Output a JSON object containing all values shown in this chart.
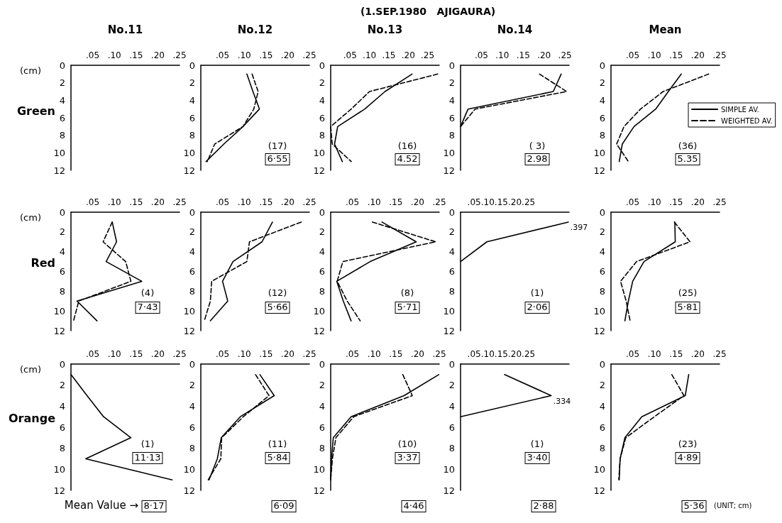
{
  "chart_data": [
    {
      "type": "line",
      "title": "No.11",
      "ylabel": "(cm)",
      "annotations": [
        "Green"
      ],
      "xlim": [
        0,
        0.25
      ],
      "xticks": [
        {
          "value": 0.05,
          "label": ".05"
        },
        {
          "value": 0.1,
          "label": ".10"
        },
        {
          "value": 0.15,
          "label": ".15"
        },
        {
          "value": 0.2,
          "label": ".20"
        },
        {
          "value": 0.25,
          "label": ".25"
        }
      ],
      "ylim": [
        12,
        0
      ],
      "yticks": [
        0,
        2,
        4,
        6,
        8,
        10,
        12
      ]
    },
    {
      "type": "line",
      "title": "No.12",
      "marker": "none",
      "annotations": [
        "(17)",
        "6·55"
      ],
      "xlim": [
        0,
        0.25
      ],
      "xticks": [
        {
          "value": 0.05,
          "label": ".05"
        },
        {
          "value": 0.1,
          "label": ".10"
        },
        {
          "value": 0.15,
          "label": ".15"
        },
        {
          "value": 0.2,
          "label": ".20"
        },
        {
          "value": 0.25,
          "label": ".25"
        }
      ],
      "ylim": [
        12,
        0
      ],
      "yticks": [
        0,
        2,
        4,
        6,
        8,
        10,
        12
      ],
      "series": [
        {
          "color": "#000000",
          "line_style": "solid",
          "x": [
            0.106,
            0.12,
            0.135,
            0.097,
            0.053,
            0.012
          ],
          "values": [
            1,
            3,
            5,
            7,
            9,
            11
          ]
        },
        {
          "color": "#000000",
          "line_style": "dashed",
          "x": [
            0.118,
            0.132,
            0.122,
            0.097,
            0.032,
            0.015
          ],
          "values": [
            1,
            3,
            5,
            7,
            9,
            11
          ]
        }
      ]
    },
    {
      "type": "line",
      "title": "No.13",
      "marker": "none",
      "annotations": [
        "(16)",
        "4.52"
      ],
      "xlim": [
        0,
        0.28
      ],
      "xticks": [
        {
          "value": 0.05,
          "label": ".05"
        },
        {
          "value": 0.1,
          "label": ".10"
        },
        {
          "value": 0.15,
          "label": ".15"
        },
        {
          "value": 0.2,
          "label": ".20"
        },
        {
          "value": 0.25,
          "label": ".25"
        }
      ],
      "ylim": [
        12,
        0
      ],
      "yticks": [
        0,
        2,
        4,
        6,
        8,
        10,
        12
      ],
      "series": [
        {
          "color": "#000000",
          "line_style": "solid",
          "x": [
            0.21,
            0.14,
            0.088,
            0.018,
            0.01,
            0.03
          ],
          "values": [
            1,
            3,
            5,
            7,
            9,
            11
          ]
        },
        {
          "color": "#000000",
          "line_style": "dashed",
          "x": [
            0.276,
            0.1,
            0.053,
            0,
            0.004,
            0.053
          ],
          "values": [
            1,
            3,
            5,
            7,
            9,
            11
          ]
        }
      ]
    },
    {
      "type": "line",
      "title": "No.14",
      "marker": "none",
      "annotations": [
        "( 3)",
        "2.98",
        "(1.SEP.1980   AJIGAURA)"
      ],
      "xlim": [
        0,
        0.26
      ],
      "xticks": [
        {
          "value": 0.05,
          "label": ".05"
        },
        {
          "value": 0.1,
          "label": ".10"
        },
        {
          "value": 0.15,
          "label": ".15"
        },
        {
          "value": 0.2,
          "label": ".20"
        },
        {
          "value": 0.25,
          "label": ".25"
        }
      ],
      "ylim": [
        12,
        0
      ],
      "yticks": [
        0,
        2,
        4,
        6,
        8,
        10,
        12
      ],
      "series": [
        {
          "color": "#000000",
          "line_style": "solid",
          "x": [
            0.241,
            0.222,
            0.018,
            0
          ],
          "values": [
            1,
            3,
            5,
            7
          ]
        },
        {
          "color": "#000000",
          "line_style": "dashed",
          "x": [
            0.189,
            0.254,
            0.035,
            0
          ],
          "values": [
            1,
            3,
            5,
            7
          ]
        }
      ]
    },
    {
      "type": "line",
      "title": "Mean",
      "marker": "none",
      "legend": "right",
      "annotations": [
        "(36)",
        "5.35"
      ],
      "xlim": [
        0,
        0.25
      ],
      "xticks": [
        {
          "value": 0.05,
          "label": ".05"
        },
        {
          "value": 0.1,
          "label": ".10"
        },
        {
          "value": 0.15,
          "label": ".15"
        },
        {
          "value": 0.2,
          "label": ".20"
        },
        {
          "value": 0.25,
          "label": ".25"
        }
      ],
      "ylim": [
        12,
        0
      ],
      "yticks": [
        0,
        2,
        4,
        6,
        8,
        10,
        12
      ],
      "series": [
        {
          "name": "SIMPLE AV.",
          "color": "#000000",
          "line_style": "solid",
          "x": [
            0.162,
            0.132,
            0.103,
            0.053,
            0.026,
            0.019
          ],
          "values": [
            1,
            3,
            5,
            7,
            9,
            11
          ]
        },
        {
          "name": "WEIGHTED AV.",
          "color": "#000000",
          "line_style": "dashed",
          "x": [
            0.225,
            0.12,
            0.068,
            0.03,
            0.013,
            0.04
          ],
          "values": [
            1,
            3,
            5,
            7,
            9,
            11
          ]
        }
      ]
    },
    {
      "type": "line",
      "ylabel": "(cm)",
      "marker": "none",
      "annotations": [
        "(4)",
        "7·43",
        "Red"
      ],
      "xlim": [
        0,
        0.25
      ],
      "xticks": [
        {
          "value": 0.05,
          "label": ".05"
        },
        {
          "value": 0.1,
          "label": ".10"
        },
        {
          "value": 0.15,
          "label": ".15"
        },
        {
          "value": 0.2,
          "label": ".20"
        },
        {
          "value": 0.25,
          "label": ".25"
        }
      ],
      "ylim": [
        12,
        0
      ],
      "yticks": [
        0,
        2,
        4,
        6,
        8,
        10,
        12
      ],
      "series": [
        {
          "color": "#000000",
          "line_style": "solid",
          "x": [
            0.095,
            0.105,
            0.081,
            0.163,
            0.014,
            0.06
          ],
          "values": [
            1,
            3,
            5,
            7,
            9,
            11
          ]
        },
        {
          "color": "#000000",
          "line_style": "dashed",
          "x": [
            0.095,
            0.074,
            0.126,
            0.138,
            0.018,
            0.006
          ],
          "values": [
            1,
            3,
            5,
            7,
            9,
            11
          ]
        }
      ]
    },
    {
      "type": "line",
      "marker": "none",
      "annotations": [
        "(12)",
        "5·66"
      ],
      "xlim": [
        0,
        0.25
      ],
      "xticks": [
        {
          "value": 0.05,
          "label": ".05"
        },
        {
          "value": 0.1,
          "label": ".10"
        },
        {
          "value": 0.15,
          "label": ".15"
        },
        {
          "value": 0.2,
          "label": ".20"
        },
        {
          "value": 0.25,
          "label": ".25"
        }
      ],
      "ylim": [
        12,
        0
      ],
      "yticks": [
        0,
        2,
        4,
        6,
        8,
        10,
        12
      ],
      "series": [
        {
          "color": "#000000",
          "line_style": "solid",
          "x": [
            0.165,
            0.141,
            0.074,
            0.05,
            0.062,
            0.022
          ],
          "values": [
            1,
            3,
            5,
            7,
            9,
            11
          ]
        },
        {
          "color": "#000000",
          "line_style": "dashed",
          "x": [
            0.231,
            0.112,
            0.106,
            0.025,
            0.022,
            0.008
          ],
          "values": [
            1,
            3,
            5,
            7,
            9,
            11
          ]
        }
      ]
    },
    {
      "type": "line",
      "marker": "none",
      "annotations": [
        "(8)",
        "5·71"
      ],
      "xlim": [
        0,
        0.25
      ],
      "xticks": [
        {
          "value": 0.05,
          "label": ".05"
        },
        {
          "value": 0.1,
          "label": ".10"
        },
        {
          "value": 0.15,
          "label": ".15"
        },
        {
          "value": 0.2,
          "label": ".20"
        },
        {
          "value": 0.25,
          "label": ".25"
        }
      ],
      "ylim": [
        12,
        0
      ],
      "yticks": [
        0,
        2,
        4,
        6,
        8,
        10,
        12
      ],
      "series": [
        {
          "color": "#000000",
          "line_style": "solid",
          "x": [
            0.118,
            0.197,
            0.091,
            0.014,
            0.029,
            0.047
          ],
          "values": [
            1,
            3,
            5,
            7,
            9,
            11
          ]
        },
        {
          "color": "#000000",
          "line_style": "dashed",
          "x": [
            0.096,
            0.242,
            0.028,
            0.015,
            0.038,
            0.068
          ],
          "values": [
            1,
            3,
            5,
            7,
            9,
            11
          ]
        }
      ]
    },
    {
      "type": "line",
      "marker": "none",
      "annotations": [
        "(1)",
        "2·06",
        {
          "text": ".397",
          "x": 0.397,
          "y": 1
        }
      ],
      "xlim": [
        0,
        0.4
      ],
      "xticks": [
        {
          "value": 0.05,
          "label": ".05"
        },
        {
          "value": 0.1,
          "label": ".10"
        },
        {
          "value": 0.15,
          "label": ".15"
        },
        {
          "value": 0.2,
          "label": ".20"
        },
        {
          "value": 0.25,
          "label": ".25"
        }
      ],
      "ylim": [
        12,
        0
      ],
      "yticks": [
        0,
        2,
        4,
        6,
        8,
        10,
        12
      ],
      "series": [
        {
          "color": "#000000",
          "line_style": "solid",
          "x": [
            0.397,
            0.097,
            0
          ],
          "values": [
            1,
            3,
            5
          ]
        }
      ]
    },
    {
      "type": "line",
      "marker": "none",
      "annotations": [
        "(25)",
        "5·81"
      ],
      "xlim": [
        0,
        0.25
      ],
      "xticks": [
        {
          "value": 0.05,
          "label": ".05"
        },
        {
          "value": 0.1,
          "label": ".10"
        },
        {
          "value": 0.15,
          "label": ".15"
        },
        {
          "value": 0.2,
          "label": ".20"
        },
        {
          "value": 0.25,
          "label": ".25"
        }
      ],
      "ylim": [
        12,
        0
      ],
      "yticks": [
        0,
        2,
        4,
        6,
        8,
        10,
        12
      ],
      "series": [
        {
          "color": "#000000",
          "line_style": "solid",
          "x": [
            0.147,
            0.148,
            0.076,
            0.05,
            0.04,
            0.032
          ],
          "values": [
            1,
            3,
            5,
            7,
            9,
            11
          ]
        },
        {
          "color": "#000000",
          "line_style": "dashed",
          "x": [
            0.146,
            0.182,
            0.059,
            0.022,
            0.035,
            0.044
          ],
          "values": [
            1,
            3,
            5,
            7,
            9,
            11
          ]
        }
      ]
    },
    {
      "type": "line",
      "ylabel": "(cm)",
      "marker": "none",
      "annotations": [
        "(1)",
        "11·13",
        "Orange",
        "8·17",
        "Mean Value →"
      ],
      "xlim": [
        0,
        0.25
      ],
      "xticks": [
        {
          "value": 0.05,
          "label": ".05"
        },
        {
          "value": 0.1,
          "label": ".10"
        },
        {
          "value": 0.15,
          "label": ".15"
        },
        {
          "value": 0.2,
          "label": ".20"
        },
        {
          "value": 0.25,
          "label": ".25"
        }
      ],
      "ylim": [
        12,
        0
      ],
      "yticks": [
        0,
        2,
        4,
        6,
        8,
        10,
        12
      ],
      "series": [
        {
          "color": "#000000",
          "line_style": "solid",
          "x": [
            0,
            0.037,
            0.075,
            0.138,
            0.034,
            0.233
          ],
          "values": [
            1,
            3,
            5,
            7,
            9,
            11
          ]
        }
      ]
    },
    {
      "type": "line",
      "marker": "none",
      "annotations": [
        "(11)",
        "5·84",
        "6·09"
      ],
      "xlim": [
        0,
        0.25
      ],
      "xticks": [
        {
          "value": 0.05,
          "label": ".05"
        },
        {
          "value": 0.1,
          "label": ".10"
        },
        {
          "value": 0.15,
          "label": ".15"
        },
        {
          "value": 0.2,
          "label": ".20"
        },
        {
          "value": 0.25,
          "label": ".25"
        }
      ],
      "ylim": [
        12,
        0
      ],
      "yticks": [
        0,
        2,
        4,
        6,
        8,
        10,
        12
      ],
      "series": [
        {
          "color": "#000000",
          "line_style": "solid",
          "x": [
            0.136,
            0.169,
            0.091,
            0.047,
            0.038,
            0.019
          ],
          "values": [
            1,
            3,
            5,
            7,
            9,
            11
          ]
        },
        {
          "color": "#000000",
          "line_style": "dashed",
          "x": [
            0.126,
            0.157,
            0.098,
            0.048,
            0.046,
            0.017
          ],
          "values": [
            1,
            3,
            5,
            7,
            9,
            11
          ]
        }
      ]
    },
    {
      "type": "line",
      "marker": "none",
      "annotations": [
        "(10)",
        "3·37",
        "4·46"
      ],
      "xlim": [
        0,
        0.25
      ],
      "xticks": [
        {
          "value": 0.05,
          "label": ".05"
        },
        {
          "value": 0.1,
          "label": ".10"
        },
        {
          "value": 0.15,
          "label": ".15"
        },
        {
          "value": 0.2,
          "label": ".20"
        },
        {
          "value": 0.25,
          "label": ".25"
        }
      ],
      "ylim": [
        12,
        0
      ],
      "yticks": [
        0,
        2,
        4,
        6,
        8,
        10,
        12
      ],
      "series": [
        {
          "color": "#000000",
          "line_style": "solid",
          "x": [
            0.249,
            0.169,
            0.047,
            0.006,
            0.002,
            0
          ],
          "values": [
            1,
            3,
            5,
            7,
            9,
            11
          ]
        },
        {
          "color": "#000000",
          "line_style": "dashed",
          "x": [
            0.166,
            0.188,
            0.053,
            0.012,
            0.004,
            0
          ],
          "values": [
            1,
            3,
            5,
            7,
            9,
            11
          ]
        }
      ]
    },
    {
      "type": "line",
      "marker": "none",
      "annotations": [
        "(1)",
        "3·40",
        "2·88",
        {
          "text": ".334",
          "x": 0.334,
          "y": 3
        }
      ],
      "xlim": [
        0,
        0.4
      ],
      "xticks": [
        {
          "value": 0.05,
          "label": ".05"
        },
        {
          "value": 0.1,
          "label": ".10"
        },
        {
          "value": 0.15,
          "label": ".15"
        },
        {
          "value": 0.2,
          "label": ".20"
        },
        {
          "value": 0.25,
          "label": ".25"
        }
      ],
      "ylim": [
        12,
        0
      ],
      "yticks": [
        0,
        2,
        4,
        6,
        8,
        10,
        12
      ],
      "series": [
        {
          "color": "#000000",
          "line_style": "solid",
          "x": [
            0.162,
            0.334,
            0
          ],
          "values": [
            1,
            3,
            5
          ]
        }
      ]
    },
    {
      "type": "line",
      "marker": "none",
      "annotations": [
        "(23)",
        "4·89",
        "5·36",
        "(UNIT; cm)"
      ],
      "xlim": [
        0,
        0.25
      ],
      "xticks": [
        {
          "value": 0.05,
          "label": ".05"
        },
        {
          "value": 0.1,
          "label": ".10"
        },
        {
          "value": 0.15,
          "label": ".15"
        },
        {
          "value": 0.2,
          "label": ".20"
        },
        {
          "value": 0.25,
          "label": ".25"
        }
      ],
      "ylim": [
        12,
        0
      ],
      "yticks": [
        0,
        2,
        4,
        6,
        8,
        10,
        12
      ],
      "series": [
        {
          "color": "#000000",
          "line_style": "solid",
          "x": [
            0.179,
            0.171,
            0.071,
            0.032,
            0.021,
            0.019
          ],
          "values": [
            1,
            3,
            5,
            7,
            9,
            11
          ]
        },
        {
          "color": "#000000",
          "line_style": "dashed",
          "x": [
            0.14,
            0.168,
            0.1,
            0.034,
            0.021,
            0.018
          ],
          "values": [
            1,
            3,
            5,
            7,
            9,
            11
          ]
        }
      ]
    }
  ]
}
